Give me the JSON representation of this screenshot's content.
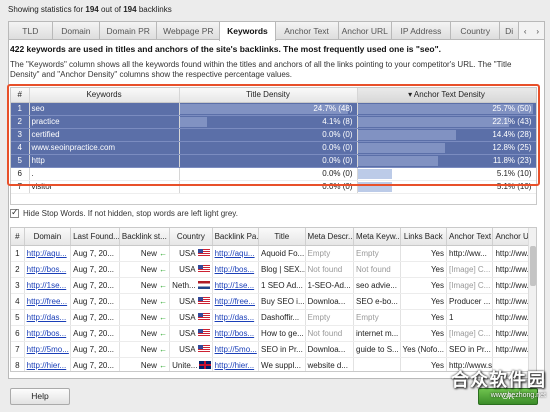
{
  "status": {
    "prefix": "Showing statistics for",
    "count": "194",
    "middle": "out of",
    "total": "194",
    "suffix": "backlinks"
  },
  "tabs": [
    {
      "label": "TLD"
    },
    {
      "label": "Domain"
    },
    {
      "label": "Domain PR"
    },
    {
      "label": "Webpage PR"
    },
    {
      "label": "Keywords",
      "active": true
    },
    {
      "label": "Anchor Text"
    },
    {
      "label": "Anchor URL"
    },
    {
      "label": "IP Address"
    },
    {
      "label": "Country"
    },
    {
      "label": "Di"
    }
  ],
  "summary": "422 keywords are used in titles and anchors of the site's backlinks. The most frequently used one is \"seo\".",
  "description": "The \"Keywords\" column shows all the keywords found within the titles and anchors of all the links pointing to your competitor's URL. The \"Title Density\" and \"Anchor Density\" columns show the respective percentage values.",
  "keywords": {
    "headers": {
      "num": "#",
      "keyword": "Keywords",
      "title": "Title Density",
      "anchor": "Anchor Text Density",
      "sort_arrow": "▾"
    },
    "rows": [
      {
        "num": "1",
        "keyword": "seo",
        "title": "24.7% (48)",
        "title_pct": 24.7,
        "anchor": "25.7% (50)",
        "anchor_pct": 25.7,
        "selected": true
      },
      {
        "num": "2",
        "keyword": "practice",
        "title": "4.1% (8)",
        "title_pct": 4.1,
        "anchor": "22.1% (43)",
        "anchor_pct": 22.1,
        "selected": true
      },
      {
        "num": "3",
        "keyword": "certified",
        "title": "0.0% (0)",
        "title_pct": 0,
        "anchor": "14.4% (28)",
        "anchor_pct": 14.4,
        "selected": true
      },
      {
        "num": "4",
        "keyword": "www.seoinpractice.com",
        "title": "0.0% (0)",
        "title_pct": 0,
        "anchor": "12.8% (25)",
        "anchor_pct": 12.8,
        "selected": true
      },
      {
        "num": "5",
        "keyword": "http",
        "title": "0.0% (0)",
        "title_pct": 0,
        "anchor": "11.8% (23)",
        "anchor_pct": 11.8,
        "selected": true
      },
      {
        "num": "6",
        "keyword": ".",
        "title": "0.0% (0)",
        "title_pct": 0,
        "anchor": "5.1% (10)",
        "anchor_pct": 5.1,
        "selected": false
      },
      {
        "num": "7",
        "keyword": "visitor",
        "title": "0.0% (0)",
        "title_pct": 0,
        "anchor": "5.1% (10)",
        "anchor_pct": 5.1,
        "selected": false
      }
    ]
  },
  "stop_words_label": "Hide Stop Words. If not hidden, stop words are left light grey.",
  "backlinks": {
    "headers": [
      "#",
      "Domain",
      "Last Found...",
      "Backlink st...",
      "Country",
      "Backlink Pa...",
      "Title",
      "Meta Descr...",
      "Meta Keyw...",
      "Links Back",
      "Anchor Text",
      "Anchor URL"
    ],
    "rows": [
      {
        "num": "1",
        "domain": "http://aqu...",
        "last": "Aug 7, 20...",
        "status": "New",
        "country": "USA",
        "flag": "us",
        "page": "http://aqu...",
        "title": "Aquoid Fo...",
        "meta_desc": "Empty",
        "meta_kw": "Empty",
        "links_back": "Yes",
        "anchor_text": "http://ww...",
        "anchor_url": "http://ww..."
      },
      {
        "num": "2",
        "domain": "http://bos...",
        "last": "Aug 7, 20...",
        "status": "New",
        "country": "USA",
        "flag": "us",
        "page": "http://bos...",
        "title": "Blog | SEX...",
        "meta_desc": "Not found",
        "meta_kw": "Not found",
        "links_back": "Yes",
        "anchor_text": "[Image] C...",
        "anchor_url": "http://ww..."
      },
      {
        "num": "3",
        "domain": "http://1se...",
        "last": "Aug 7, 20...",
        "status": "New",
        "country": "Neth...",
        "flag": "nl",
        "page": "http://1se...",
        "title": "1 SEO Ad...",
        "meta_desc": "1-SEO-Ad...",
        "meta_kw": "seo advie...",
        "links_back": "Yes",
        "anchor_text": "[Image] C...",
        "anchor_url": "http://ww..."
      },
      {
        "num": "4",
        "domain": "http://free...",
        "last": "Aug 7, 20...",
        "status": "New",
        "country": "USA",
        "flag": "us",
        "page": "http://free...",
        "title": "Buy SEO i...",
        "meta_desc": "Downloa...",
        "meta_kw": "SEO e-bo...",
        "links_back": "Yes",
        "anchor_text": "Producer ...",
        "anchor_url": "http://ww..."
      },
      {
        "num": "5",
        "domain": "http://das...",
        "last": "Aug 7, 20...",
        "status": "New",
        "country": "USA",
        "flag": "us",
        "page": "http://das...",
        "title": "Dashoffir...",
        "meta_desc": "Empty",
        "meta_kw": "Empty",
        "links_back": "Yes",
        "anchor_text": "1",
        "anchor_url": "http://ww..."
      },
      {
        "num": "6",
        "domain": "http://bos...",
        "last": "Aug 7, 20...",
        "status": "New",
        "country": "USA",
        "flag": "us",
        "page": "http://bos...",
        "title": "How to ge...",
        "meta_desc": "Not found",
        "meta_kw": "internet m...",
        "links_back": "Yes",
        "anchor_text": "[Image] C...",
        "anchor_url": "http://ww..."
      },
      {
        "num": "7",
        "domain": "http://5mo...",
        "last": "Aug 7, 20...",
        "status": "New",
        "country": "USA",
        "flag": "us",
        "page": "http://5mo...",
        "title": "SEO in Pr...",
        "meta_desc": "Downloa...",
        "meta_kw": "guide to S...",
        "links_back": "Yes (Nofo...",
        "anchor_text": "SEO in Pr...",
        "anchor_url": "http://ww..."
      },
      {
        "num": "8",
        "domain": "http://hier...",
        "last": "Aug 7, 20...",
        "status": "New",
        "country": "Unite...",
        "flag": "uk",
        "page": "http://hier...",
        "title": "We suppl...",
        "meta_desc": "website d...",
        "meta_kw": "",
        "links_back": "Yes",
        "anchor_text": "http://www.seoi...",
        "anchor_url": ""
      }
    ]
  },
  "buttons": {
    "help": "Help",
    "ok": "OK"
  },
  "watermark": {
    "main": "合众软件园",
    "sub": "www.hezhong.net"
  },
  "colors": {
    "selection": "#5b6fa8",
    "highlight_border": "#e8502a",
    "link": "#1a3fb8",
    "ok_green": "#3b8d29"
  }
}
